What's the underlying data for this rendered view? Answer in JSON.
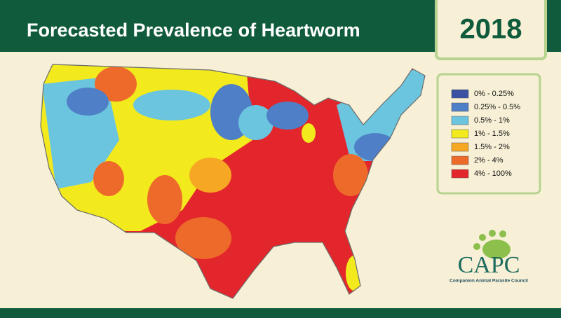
{
  "header": {
    "title": "Forecasted Prevalence of Heartworm",
    "year": "2018"
  },
  "legend": {
    "items": [
      {
        "label": "0% - 0.25%",
        "color": "#3b52a3"
      },
      {
        "label": "0.25% - 0.5%",
        "color": "#4f7fc6"
      },
      {
        "label": "0.5% - 1%",
        "color": "#6cc5de"
      },
      {
        "label": "1% - 1.5%",
        "color": "#f2ea1d"
      },
      {
        "label": "1.5% - 2%",
        "color": "#f6a724"
      },
      {
        "label": "2% - 4%",
        "color": "#ee6a2b"
      },
      {
        "label": "4% - 100%",
        "color": "#e3262b"
      }
    ]
  },
  "logo": {
    "name": "CAPC",
    "tagline": "Companion Animal Parasite Council"
  }
}
